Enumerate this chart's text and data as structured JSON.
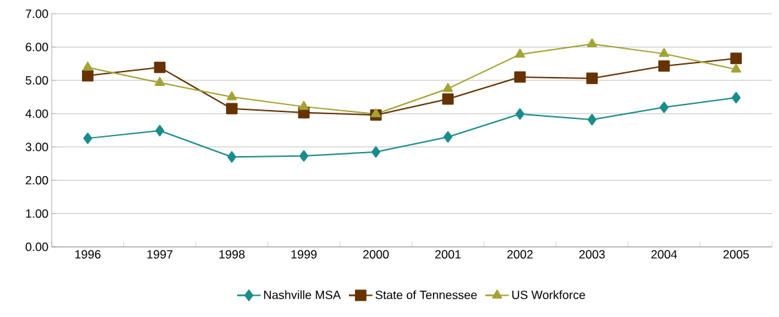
{
  "chart_data": {
    "type": "line",
    "categories": [
      "1996",
      "1997",
      "1998",
      "1999",
      "2000",
      "2001",
      "2002",
      "2003",
      "2004",
      "2005"
    ],
    "series": [
      {
        "name": "Nashville MSA",
        "color": "#1a8c8c",
        "marker": "diamond",
        "values": [
          3.26,
          3.49,
          2.7,
          2.73,
          2.85,
          3.3,
          3.99,
          3.82,
          4.19,
          4.48
        ]
      },
      {
        "name": "State of Tennessee",
        "color": "#663300",
        "marker": "square",
        "values": [
          5.14,
          5.39,
          4.15,
          4.03,
          3.96,
          4.44,
          5.1,
          5.06,
          5.43,
          5.66
        ]
      },
      {
        "name": "US Workforce",
        "color": "#a3a336",
        "marker": "triangle",
        "values": [
          5.39,
          4.93,
          4.5,
          4.21,
          3.99,
          4.75,
          5.78,
          6.09,
          5.8,
          5.33
        ]
      }
    ],
    "ylim": [
      0,
      7
    ],
    "yticks": [
      {
        "value": 0,
        "label": "0.00"
      },
      {
        "value": 1,
        "label": "1.00"
      },
      {
        "value": 2,
        "label": "2.00"
      },
      {
        "value": 3,
        "label": "3.00"
      },
      {
        "value": 4,
        "label": "4.00"
      },
      {
        "value": 5,
        "label": "5.00"
      },
      {
        "value": 6,
        "label": "6.00"
      },
      {
        "value": 7,
        "label": "7.00"
      }
    ],
    "grid": "y",
    "legend": "bottom",
    "line_style": "solid"
  }
}
